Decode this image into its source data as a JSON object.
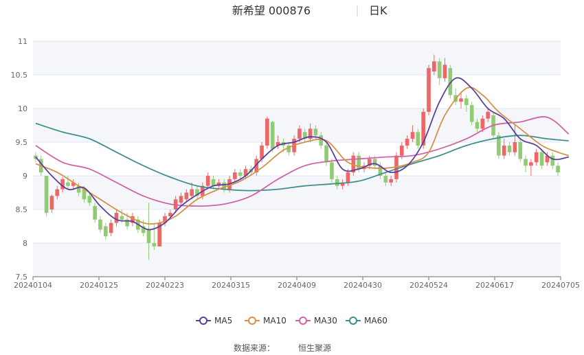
{
  "chart_data": {
    "type": "candlestick",
    "title": "新希望 000876",
    "period": "日K",
    "ylim": [
      7.5,
      11
    ],
    "y_ticks": [
      "7.5",
      "8",
      "8.5",
      "9",
      "9.5",
      "10",
      "10.5",
      "11"
    ],
    "x_ticks": [
      "20240104",
      "20240125",
      "20240223",
      "20240315",
      "20240409",
      "20240430",
      "20240524",
      "20240617",
      "20240705"
    ],
    "colors": {
      "up": "#ee6666",
      "down": "#91cc75",
      "grid": "#e0e6f1",
      "band": "#f5f6fa",
      "axis": "#6e7079"
    },
    "legend_position": "bottom-center",
    "legend": [
      {
        "name": "MA5",
        "color": "#5b3f9a"
      },
      {
        "name": "MA10",
        "color": "#d4914a"
      },
      {
        "name": "MA30",
        "color": "#d162a8"
      },
      {
        "name": "MA60",
        "color": "#3d8f8c"
      }
    ],
    "candles": [
      [
        9.3,
        9.25,
        9.35,
        9.2
      ],
      [
        9.25,
        9.05,
        9.3,
        9.0
      ],
      [
        9.0,
        8.45,
        9.0,
        8.4
      ],
      [
        8.5,
        8.7,
        8.72,
        8.45
      ],
      [
        8.7,
        8.8,
        8.85,
        8.65
      ],
      [
        8.8,
        8.95,
        8.98,
        8.75
      ],
      [
        8.9,
        8.85,
        9.0,
        8.8
      ],
      [
        8.85,
        8.9,
        8.95,
        8.8
      ],
      [
        8.85,
        8.75,
        8.9,
        8.7
      ],
      [
        8.8,
        8.65,
        8.85,
        8.6
      ],
      [
        8.7,
        8.6,
        8.75,
        8.55
      ],
      [
        8.55,
        8.35,
        8.6,
        8.3
      ],
      [
        8.35,
        8.2,
        8.4,
        8.15
      ],
      [
        8.25,
        8.1,
        8.3,
        8.05
      ],
      [
        8.15,
        8.3,
        8.35,
        8.1
      ],
      [
        8.3,
        8.45,
        8.5,
        8.25
      ],
      [
        8.4,
        8.35,
        8.5,
        8.3
      ],
      [
        8.35,
        8.25,
        8.45,
        8.2
      ],
      [
        8.3,
        8.4,
        8.45,
        8.25
      ],
      [
        8.35,
        8.2,
        8.4,
        8.15
      ],
      [
        8.25,
        8.15,
        8.35,
        8.1
      ],
      [
        8.2,
        8.0,
        8.6,
        7.75
      ],
      [
        8.0,
        7.95,
        8.3,
        7.9
      ],
      [
        7.95,
        8.3,
        8.35,
        7.95
      ],
      [
        8.3,
        8.4,
        8.45,
        8.25
      ],
      [
        8.4,
        8.45,
        8.5,
        8.35
      ],
      [
        8.5,
        8.65,
        8.7,
        8.45
      ],
      [
        8.6,
        8.7,
        8.75,
        8.55
      ],
      [
        8.65,
        8.75,
        8.8,
        8.6
      ],
      [
        8.7,
        8.8,
        8.9,
        8.65
      ],
      [
        8.8,
        8.7,
        8.85,
        8.65
      ],
      [
        8.7,
        8.85,
        8.9,
        8.65
      ],
      [
        8.85,
        9.0,
        9.05,
        8.8
      ],
      [
        8.95,
        8.85,
        9.0,
        8.8
      ],
      [
        8.85,
        8.9,
        8.95,
        8.8
      ],
      [
        8.9,
        8.8,
        8.95,
        8.75
      ],
      [
        8.8,
        8.95,
        9.0,
        8.75
      ],
      [
        8.95,
        9.05,
        9.1,
        8.9
      ],
      [
        9.05,
        9.0,
        9.1,
        8.95
      ],
      [
        9.0,
        9.1,
        9.15,
        8.95
      ],
      [
        9.1,
        9.05,
        9.15,
        9.0
      ],
      [
        9.05,
        9.25,
        9.3,
        9.0
      ],
      [
        9.25,
        9.45,
        9.5,
        9.2
      ],
      [
        9.45,
        9.85,
        9.88,
        9.4
      ],
      [
        9.8,
        9.4,
        9.82,
        9.35
      ],
      [
        9.45,
        9.5,
        9.6,
        9.4
      ],
      [
        9.5,
        9.45,
        9.55,
        9.35
      ],
      [
        9.45,
        9.35,
        9.5,
        9.3
      ],
      [
        9.35,
        9.55,
        9.6,
        9.3
      ],
      [
        9.55,
        9.7,
        9.75,
        9.5
      ],
      [
        9.65,
        9.55,
        9.7,
        9.5
      ],
      [
        9.55,
        9.7,
        9.78,
        9.5
      ],
      [
        9.7,
        9.6,
        9.75,
        9.55
      ],
      [
        9.6,
        9.45,
        9.65,
        9.4
      ],
      [
        9.45,
        9.2,
        9.5,
        9.15
      ],
      [
        9.2,
        8.95,
        9.25,
        8.9
      ],
      [
        8.95,
        8.85,
        9.0,
        8.8
      ],
      [
        8.85,
        8.9,
        8.95,
        8.8
      ],
      [
        8.9,
        9.05,
        9.1,
        8.85
      ],
      [
        9.05,
        9.3,
        9.35,
        9.0
      ],
      [
        9.3,
        9.1,
        9.35,
        9.05
      ],
      [
        9.1,
        9.15,
        9.2,
        9.05
      ],
      [
        9.15,
        9.25,
        9.3,
        9.1
      ],
      [
        9.25,
        9.15,
        9.3,
        9.1
      ],
      [
        9.15,
        9.0,
        9.2,
        8.95
      ],
      [
        9.0,
        8.9,
        9.05,
        8.85
      ],
      [
        8.9,
        8.95,
        9.0,
        8.85
      ],
      [
        8.95,
        9.3,
        9.35,
        8.9
      ],
      [
        9.3,
        9.45,
        9.5,
        9.25
      ],
      [
        9.45,
        9.55,
        9.6,
        9.4
      ],
      [
        9.55,
        9.65,
        9.75,
        9.5
      ],
      [
        9.65,
        9.45,
        9.7,
        9.4
      ],
      [
        9.45,
        9.95,
        10.0,
        9.4
      ],
      [
        9.95,
        10.6,
        10.65,
        9.9
      ],
      [
        10.55,
        10.7,
        10.8,
        10.5
      ],
      [
        10.7,
        10.45,
        10.75,
        10.35
      ],
      [
        10.45,
        10.65,
        10.75,
        10.4
      ],
      [
        10.6,
        10.2,
        10.65,
        10.15
      ],
      [
        10.2,
        10.1,
        10.3,
        10.05
      ],
      [
        10.1,
        10.15,
        10.25,
        10.0
      ],
      [
        10.15,
        10.05,
        10.2,
        9.95
      ],
      [
        10.05,
        9.8,
        10.1,
        9.75
      ],
      [
        9.8,
        9.7,
        9.85,
        9.65
      ],
      [
        9.7,
        9.85,
        9.9,
        9.65
      ],
      [
        9.85,
        9.95,
        10.0,
        9.8
      ],
      [
        9.9,
        9.6,
        9.95,
        9.55
      ],
      [
        9.6,
        9.3,
        9.65,
        9.25
      ],
      [
        9.3,
        9.45,
        9.55,
        9.25
      ],
      [
        9.45,
        9.35,
        9.5,
        9.3
      ],
      [
        9.35,
        9.5,
        9.75,
        9.3
      ],
      [
        9.5,
        9.25,
        9.55,
        9.2
      ],
      [
        9.25,
        9.15,
        9.3,
        9.05
      ],
      [
        9.15,
        9.2,
        9.25,
        9.0
      ],
      [
        9.2,
        9.35,
        9.4,
        9.15
      ],
      [
        9.35,
        9.15,
        9.4,
        9.1
      ],
      [
        9.2,
        9.3,
        9.35,
        9.15
      ],
      [
        9.3,
        9.15,
        9.35,
        9.1
      ],
      [
        9.15,
        9.05,
        9.2,
        9.0
      ]
    ],
    "series": [
      {
        "name": "MA5",
        "color": "#5b3f9a",
        "points": [
          [
            0,
            9.28
          ],
          [
            3,
            9.0
          ],
          [
            6,
            8.8
          ],
          [
            9,
            8.82
          ],
          [
            12,
            8.55
          ],
          [
            15,
            8.35
          ],
          [
            18,
            8.32
          ],
          [
            21,
            8.2
          ],
          [
            24,
            8.3
          ],
          [
            27,
            8.55
          ],
          [
            30,
            8.72
          ],
          [
            33,
            8.85
          ],
          [
            36,
            8.88
          ],
          [
            39,
            9.0
          ],
          [
            42,
            9.25
          ],
          [
            45,
            9.45
          ],
          [
            48,
            9.5
          ],
          [
            51,
            9.58
          ],
          [
            54,
            9.5
          ],
          [
            57,
            9.1
          ],
          [
            60,
            9.1
          ],
          [
            63,
            9.18
          ],
          [
            66,
            9.05
          ],
          [
            69,
            9.15
          ],
          [
            72,
            9.5
          ],
          [
            75,
            10.1
          ],
          [
            78,
            10.45
          ],
          [
            81,
            10.3
          ],
          [
            84,
            10.0
          ],
          [
            87,
            9.85
          ],
          [
            90,
            9.55
          ],
          [
            93,
            9.45
          ],
          [
            96,
            9.25
          ],
          [
            99,
            9.28
          ]
        ]
      },
      {
        "name": "MA10",
        "color": "#d4914a",
        "points": [
          [
            0,
            9.18
          ],
          [
            4,
            9.05
          ],
          [
            8,
            8.85
          ],
          [
            12,
            8.65
          ],
          [
            16,
            8.45
          ],
          [
            20,
            8.3
          ],
          [
            23,
            8.3
          ],
          [
            26,
            8.4
          ],
          [
            30,
            8.65
          ],
          [
            34,
            8.8
          ],
          [
            38,
            8.92
          ],
          [
            42,
            9.12
          ],
          [
            46,
            9.38
          ],
          [
            50,
            9.5
          ],
          [
            54,
            9.52
          ],
          [
            58,
            9.2
          ],
          [
            62,
            9.12
          ],
          [
            66,
            9.12
          ],
          [
            70,
            9.2
          ],
          [
            73,
            9.35
          ],
          [
            76,
            9.9
          ],
          [
            80,
            10.3
          ],
          [
            83,
            10.2
          ],
          [
            86,
            9.95
          ],
          [
            90,
            9.7
          ],
          [
            94,
            9.45
          ],
          [
            97,
            9.35
          ],
          [
            99,
            9.3
          ]
        ]
      },
      {
        "name": "MA30",
        "color": "#d162a8",
        "points": [
          [
            0,
            9.45
          ],
          [
            5,
            9.2
          ],
          [
            10,
            9.1
          ],
          [
            15,
            8.9
          ],
          [
            20,
            8.7
          ],
          [
            25,
            8.58
          ],
          [
            30,
            8.55
          ],
          [
            35,
            8.58
          ],
          [
            40,
            8.7
          ],
          [
            45,
            8.95
          ],
          [
            50,
            9.15
          ],
          [
            55,
            9.22
          ],
          [
            60,
            9.25
          ],
          [
            65,
            9.28
          ],
          [
            70,
            9.3
          ],
          [
            75,
            9.4
          ],
          [
            80,
            9.55
          ],
          [
            85,
            9.75
          ],
          [
            90,
            9.8
          ],
          [
            95,
            9.87
          ],
          [
            99,
            9.62
          ]
        ]
      },
      {
        "name": "MA60",
        "color": "#3d8f8c",
        "points": [
          [
            0,
            9.78
          ],
          [
            5,
            9.65
          ],
          [
            10,
            9.55
          ],
          [
            15,
            9.35
          ],
          [
            20,
            9.15
          ],
          [
            25,
            8.98
          ],
          [
            30,
            8.85
          ],
          [
            35,
            8.8
          ],
          [
            40,
            8.78
          ],
          [
            45,
            8.8
          ],
          [
            50,
            8.85
          ],
          [
            55,
            8.88
          ],
          [
            60,
            8.92
          ],
          [
            65,
            9.05
          ],
          [
            70,
            9.18
          ],
          [
            75,
            9.3
          ],
          [
            80,
            9.45
          ],
          [
            85,
            9.55
          ],
          [
            90,
            9.6
          ],
          [
            95,
            9.55
          ],
          [
            99,
            9.52
          ]
        ]
      }
    ],
    "source_label": "数据来源：",
    "source_name": "恒生聚源"
  }
}
